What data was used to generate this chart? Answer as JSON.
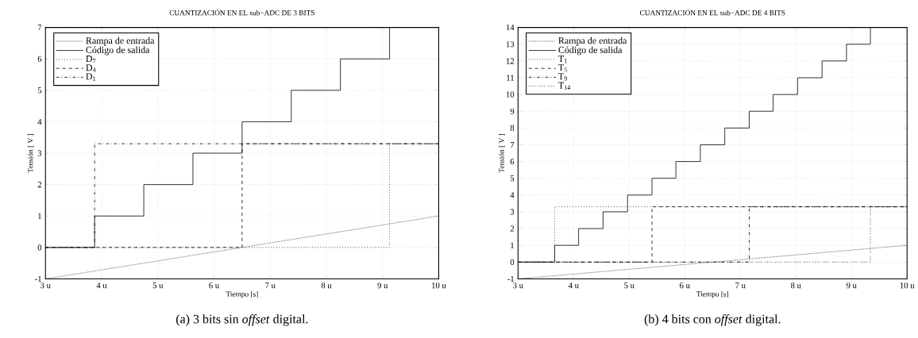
{
  "chart_data": [
    {
      "type": "step",
      "title": "CUANTIZACIÓN EN EL sub−ADC DE 3 BITS",
      "xlabel": "Tiempo [s]",
      "ylabel": "Tensión [ V ]",
      "annotations": [
        "(a) 3 bits sin *offset* digital."
      ],
      "xlim": [
        3,
        10
      ],
      "ylim": [
        -1,
        7
      ],
      "xticks": [
        {
          "value": 3,
          "label": "3 u"
        },
        {
          "value": 4,
          "label": "4 u"
        },
        {
          "value": 5,
          "label": "5 u"
        },
        {
          "value": 6,
          "label": "6 u"
        },
        {
          "value": 7,
          "label": "7 u"
        },
        {
          "value": 8,
          "label": "8 u"
        },
        {
          "value": 9,
          "label": "9 u"
        },
        {
          "value": 10,
          "label": "10 u"
        }
      ],
      "yticks": [
        -1,
        0,
        1,
        2,
        3,
        4,
        5,
        6,
        7
      ],
      "grid": true,
      "legend": "top left",
      "series": [
        {
          "name": "Rampa de entrada",
          "type": "line",
          "color": "#000000",
          "line_style": "densely dotted",
          "x": [
            3,
            10
          ],
          "values": [
            -1,
            1
          ]
        },
        {
          "name": "Código de salida",
          "color": "#000000",
          "line_style": "solid",
          "x": [
            3,
            3.875,
            4.75,
            5.625,
            6.5,
            7.375,
            8.25,
            9.125
          ],
          "values": [
            0,
            1,
            2,
            3,
            4,
            5,
            6,
            7
          ]
        },
        {
          "name": "D$_{7}$",
          "color": "#000000",
          "line_style": "dotted",
          "x": [
            3,
            9.125,
            10
          ],
          "values": [
            0,
            3.3,
            3.3
          ]
        },
        {
          "name": "D$_{4}$",
          "color": "#000000",
          "line_style": "dashed",
          "x": [
            3,
            6.5,
            10
          ],
          "values": [
            0,
            3.3,
            3.3
          ]
        },
        {
          "name": "D$_{1}$",
          "color": "#000000",
          "line_style": "dashdot",
          "x": [
            3,
            3.875,
            10
          ],
          "values": [
            0,
            3.3,
            3.3
          ]
        }
      ]
    },
    {
      "type": "step",
      "title": "CUANTIZACIÓN EN EL sub−ADC DE 4 BITS",
      "xlabel": "Tiempo [s]",
      "ylabel": "Tensión [ V ]",
      "annotations": [
        "(b) 4 bits con *offset* digital."
      ],
      "xlim": [
        3,
        10
      ],
      "ylim": [
        -1,
        14
      ],
      "xticks": [
        {
          "value": 3,
          "label": "3 u"
        },
        {
          "value": 4,
          "label": "4 u"
        },
        {
          "value": 5,
          "label": "5 u"
        },
        {
          "value": 6,
          "label": "6 u"
        },
        {
          "value": 7,
          "label": "7 u"
        },
        {
          "value": 8,
          "label": "8 u"
        },
        {
          "value": 9,
          "label": "9 u"
        },
        {
          "value": 10,
          "label": "10 u"
        }
      ],
      "yticks": [
        -1,
        0,
        1,
        2,
        3,
        4,
        5,
        6,
        7,
        8,
        9,
        10,
        11,
        12,
        13,
        14
      ],
      "grid": true,
      "legend": "top left",
      "series": [
        {
          "name": "Rampa de entrada",
          "type": "line",
          "color": "#000000",
          "line_style": "densely dotted",
          "x": [
            3,
            10
          ],
          "values": [
            -1,
            1
          ]
        },
        {
          "name": "Código de salida",
          "color": "#000000",
          "line_style": "solid",
          "x": [
            3,
            3.66,
            4.09,
            4.53,
            4.97,
            5.41,
            5.84,
            6.28,
            6.72,
            7.16,
            7.59,
            8.03,
            8.47,
            8.91,
            9.34
          ],
          "values": [
            0,
            1,
            2,
            3,
            4,
            5,
            6,
            7,
            8,
            9,
            10,
            11,
            12,
            13,
            14
          ]
        },
        {
          "name": "T$_{1}$",
          "color": "#000000",
          "line_style": "dotted",
          "x": [
            3,
            3.66,
            10
          ],
          "values": [
            0,
            3.3,
            3.3
          ]
        },
        {
          "name": "T$_{5}$",
          "color": "#000000",
          "line_style": "dashed",
          "x": [
            3,
            5.41,
            10
          ],
          "values": [
            0,
            3.3,
            3.3
          ]
        },
        {
          "name": "T$_{9}$",
          "color": "#000000",
          "line_style": "dashdot",
          "x": [
            3,
            7.16,
            10
          ],
          "values": [
            0,
            3.3,
            3.3
          ]
        },
        {
          "name": "T$_{14}$",
          "color": "#000000",
          "line_style": "loosely dotted",
          "x": [
            3,
            9.34,
            10
          ],
          "values": [
            0,
            3.3,
            3.3
          ]
        }
      ]
    }
  ]
}
